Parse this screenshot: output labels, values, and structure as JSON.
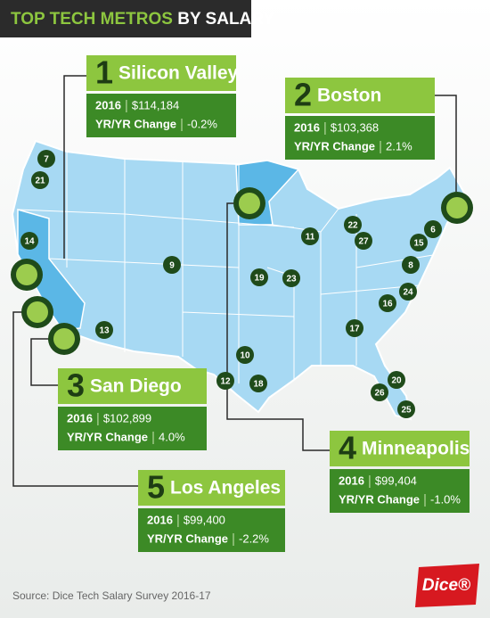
{
  "header": {
    "title_highlight": "TOP TECH METROS",
    "title_rest": "BY SALARY"
  },
  "callouts": [
    {
      "rank": "1",
      "city": "Silicon Valley",
      "year_label": "2016",
      "salary": "$114,184",
      "change_label": "YR/YR Change",
      "change": "-0.2%"
    },
    {
      "rank": "2",
      "city": "Boston",
      "year_label": "2016",
      "salary": "$103,368",
      "change_label": "YR/YR Change",
      "change": "2.1%"
    },
    {
      "rank": "3",
      "city": "San Diego",
      "year_label": "2016",
      "salary": "$102,899",
      "change_label": "YR/YR Change",
      "change": "4.0%"
    },
    {
      "rank": "4",
      "city": "Minneapolis",
      "year_label": "2016",
      "salary": "$99,404",
      "change_label": "YR/YR Change",
      "change": "-1.0%"
    },
    {
      "rank": "5",
      "city": "Los Angeles",
      "year_label": "2016",
      "salary": "$99,400",
      "change_label": "YR/YR Change",
      "change": "-2.2%"
    }
  ],
  "markers": [
    "7",
    "21",
    "14",
    "9",
    "13",
    "10",
    "12",
    "18",
    "19",
    "23",
    "11",
    "22",
    "27",
    "15",
    "6",
    "8",
    "24",
    "16",
    "17",
    "20",
    "26",
    "25"
  ],
  "footer": {
    "source": "Source: Dice Tech Salary Survey 2016-17",
    "logo": "Dice®"
  }
}
